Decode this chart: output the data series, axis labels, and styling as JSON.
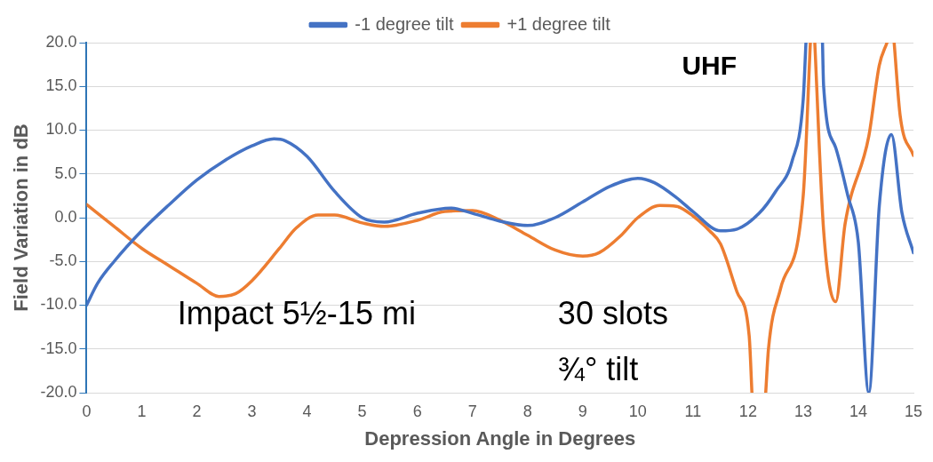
{
  "chart_data": {
    "type": "line",
    "xlabel": "Depression Angle in Degrees",
    "ylabel": "Field Variation in dB",
    "annotations": [
      "UHF",
      "Impact 5½-15 mi",
      "30 slots",
      "¾° tilt"
    ],
    "xlim": [
      0,
      15
    ],
    "xticks": [
      0,
      1,
      2,
      3,
      4,
      5,
      6,
      7,
      8,
      9,
      10,
      11,
      12,
      13,
      14,
      15
    ],
    "ylim": [
      -20,
      20
    ],
    "yticks": [
      {
        "value": -20,
        "label": "-20.0"
      },
      {
        "value": -15,
        "label": "-15.0"
      },
      {
        "value": -10,
        "label": "-10.0"
      },
      {
        "value": -5,
        "label": "-5.0"
      },
      {
        "value": 0,
        "label": "0.0"
      },
      {
        "value": 5,
        "label": "5.0"
      },
      {
        "value": 10,
        "label": "10.0"
      },
      {
        "value": 15,
        "label": "15.0"
      },
      {
        "value": 20,
        "label": "20.0"
      }
    ],
    "grid": "y",
    "legend": "top",
    "line_style": "solid",
    "marker": "none",
    "series": [
      {
        "name": "-1 degree tilt",
        "color": "#4472c4",
        "x": [
          0,
          0.2,
          0.5,
          1,
          1.5,
          2,
          2.5,
          3,
          3.4,
          3.6,
          4,
          4.5,
          5,
          5.4,
          6,
          6.6,
          7,
          7.5,
          8,
          8.5,
          9,
          9.5,
          10,
          10.3,
          10.7,
          11,
          11.5,
          11.8,
          12.2,
          12.5,
          12.8,
          13,
          13.05,
          13.2,
          13.35,
          13.37,
          13.59,
          13.81,
          14,
          14.19,
          14.38,
          14.6,
          14.79,
          15
        ],
        "values": [
          -10,
          -7.5,
          -5,
          -1.5,
          1.5,
          4.3,
          6.5,
          8.2,
          9,
          8.8,
          7,
          3,
          0,
          -0.5,
          0.5,
          1.1,
          0.5,
          -0.4,
          -0.9,
          0,
          1.8,
          3.6,
          4.5,
          4,
          2.3,
          0.7,
          -1.5,
          -1.3,
          0.5,
          3,
          6.5,
          13.5,
          20,
          null,
          20,
          15.1,
          8,
          2.5,
          -2.8,
          -20,
          1.3,
          9.5,
          0.6,
          -4
        ]
      },
      {
        "name": "+1 degree tilt",
        "color": "#ed7d31",
        "x": [
          0,
          0.5,
          1,
          1.5,
          2,
          2.4,
          2.7,
          3,
          3.5,
          3.8,
          4.2,
          4.5,
          5,
          5.4,
          6,
          6.5,
          7,
          7.5,
          8,
          8.5,
          9,
          9.3,
          9.7,
          10,
          10.4,
          10.7,
          11,
          11.3,
          11.5,
          11.8,
          12.02,
          12.07,
          12.2,
          12.32,
          12.37,
          12.59,
          13,
          13.13,
          13.17,
          13.21,
          13.37,
          13.59,
          13.76,
          14.19,
          14.38,
          14.52,
          14.58,
          14.65,
          14.76,
          15
        ],
        "values": [
          1.5,
          -1,
          -3.5,
          -5.5,
          -7.5,
          -9,
          -8.7,
          -7.2,
          -3.5,
          -1.2,
          0.3,
          0.3,
          -0.6,
          -1,
          -0.3,
          0.7,
          0.8,
          -0.3,
          -2,
          -3.7,
          -4.4,
          -4,
          -2,
          0,
          1.4,
          1.3,
          0.2,
          -1.5,
          -3,
          -8.5,
          -13.5,
          -20,
          null,
          -20,
          -15,
          -8.1,
          2.5,
          20,
          null,
          20,
          -1.4,
          -9.6,
          -0.7,
          9.3,
          17.4,
          20,
          null,
          20,
          11.6,
          7.1
        ]
      }
    ]
  }
}
